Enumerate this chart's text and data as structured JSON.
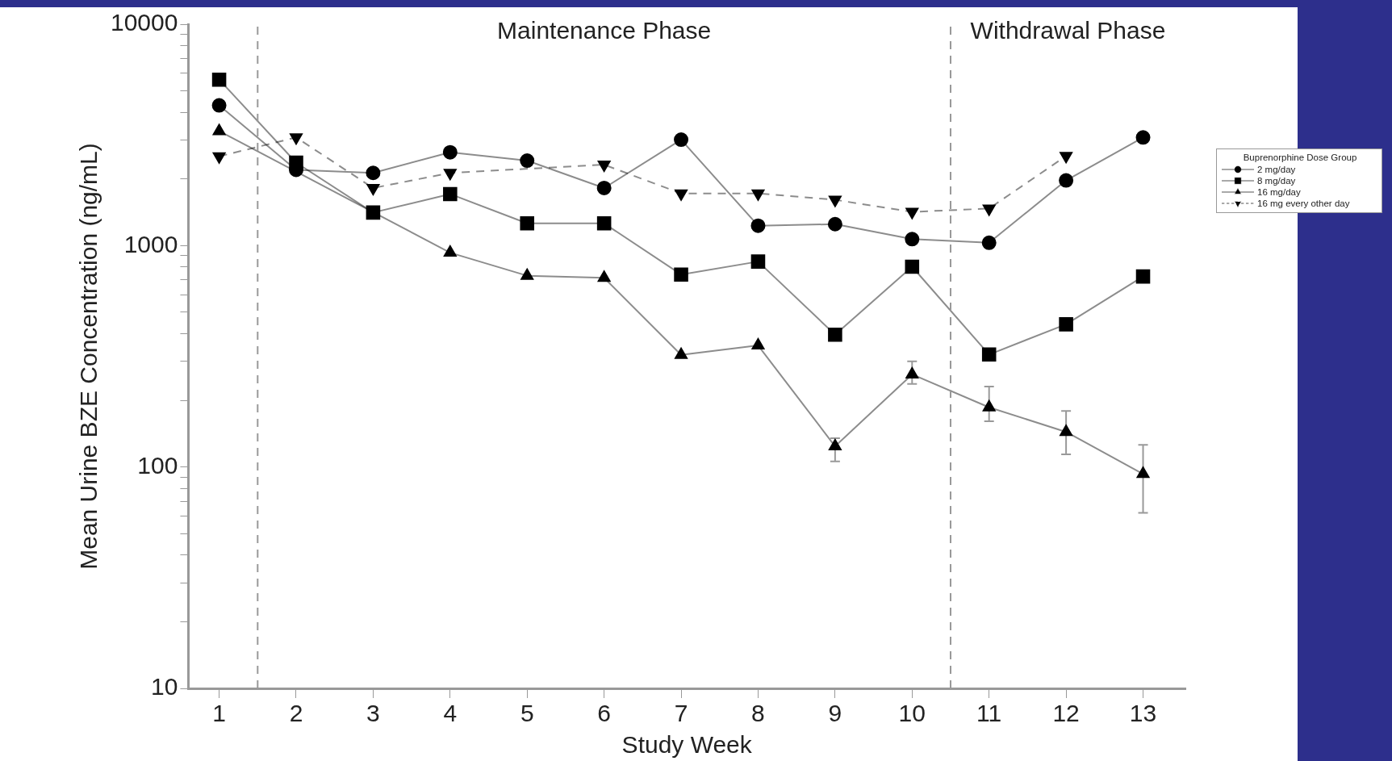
{
  "chart_data": {
    "type": "line",
    "xlabel": "Study Week",
    "ylabel": "Mean Urine BZE Concentration (ng/mL)",
    "legend_title": "Buprenorphine Dose Group",
    "legend": "right",
    "grid": false,
    "log": "y",
    "x": [
      1,
      2,
      3,
      4,
      5,
      6,
      7,
      8,
      9,
      10,
      11,
      12,
      13
    ],
    "xlim": [
      0.6,
      13.55
    ],
    "xticks": [
      1,
      2,
      3,
      4,
      5,
      6,
      7,
      8,
      9,
      10,
      11,
      12,
      13
    ],
    "ylim": [
      10,
      10000
    ],
    "yticks": [
      10,
      {
        "value": 20,
        "label": null
      },
      {
        "value": 30,
        "label": null
      },
      {
        "value": 40,
        "label": null
      },
      {
        "value": 50,
        "label": null
      },
      {
        "value": 60,
        "label": null
      },
      {
        "value": 70,
        "label": null
      },
      {
        "value": 80,
        "label": null
      },
      {
        "value": 90,
        "label": null
      },
      100,
      {
        "value": 200,
        "label": null
      },
      {
        "value": 300,
        "label": null
      },
      {
        "value": 400,
        "label": null
      },
      {
        "value": 500,
        "label": null
      },
      {
        "value": 600,
        "label": null
      },
      {
        "value": 700,
        "label": null
      },
      {
        "value": 800,
        "label": null
      },
      {
        "value": 900,
        "label": null
      },
      1000,
      {
        "value": 2000,
        "label": null
      },
      {
        "value": 3000,
        "label": null
      },
      {
        "value": 4000,
        "label": null
      },
      {
        "value": 5000,
        "label": null
      },
      {
        "value": 6000,
        "label": null
      },
      {
        "value": 7000,
        "label": null
      },
      {
        "value": 8000,
        "label": null
      },
      {
        "value": 9000,
        "label": null
      },
      10000
    ],
    "series": [
      {
        "name": "2 mg/day",
        "color": "#000000",
        "marker": "circle",
        "line_style": "solid",
        "values": [
          4300,
          2200,
          2130,
          2640,
          2420,
          1820,
          3010,
          1230,
          1250,
          1070,
          1030,
          1970,
          3080
        ]
      },
      {
        "name": "8 mg/day",
        "color": "#000000",
        "marker": "square",
        "line_style": "solid",
        "values": [
          5620,
          2370,
          1410,
          1710,
          1260,
          1260,
          740,
          847,
          396,
          803,
          322,
          441,
          725
        ]
      },
      {
        "name": "16 mg/day",
        "color": "#000000",
        "marker": "triangle",
        "line_style": "solid",
        "values": [
          3290,
          null,
          null,
          929,
          731,
          715,
          321,
          354,
          124,
          262,
          186,
          144,
          93
        ],
        "errors": [
          null,
          null,
          null,
          null,
          null,
          null,
          null,
          null,
          [
            106,
            135
          ],
          [
            237,
            300
          ],
          [
            161,
            231
          ],
          [
            114,
            179
          ],
          [
            62,
            126
          ]
        ]
      },
      {
        "name": "16 mg every other day",
        "color": "#000000",
        "marker": "triangle-down",
        "line_style": "dashed",
        "values": [
          2530,
          3080,
          1820,
          2130,
          null,
          2320,
          1720,
          1720,
          1610,
          1420,
          1470,
          2540,
          null
        ]
      }
    ],
    "ref_lines": [
      {
        "axis": "x",
        "value": 1.5,
        "color": "#999999",
        "line_style": "dashed"
      },
      {
        "axis": "x",
        "value": 10.5,
        "color": "#999999",
        "line_style": "dashed"
      }
    ],
    "annotations": [
      "Maintenance Phase",
      "Withdrawal Phase"
    ]
  }
}
